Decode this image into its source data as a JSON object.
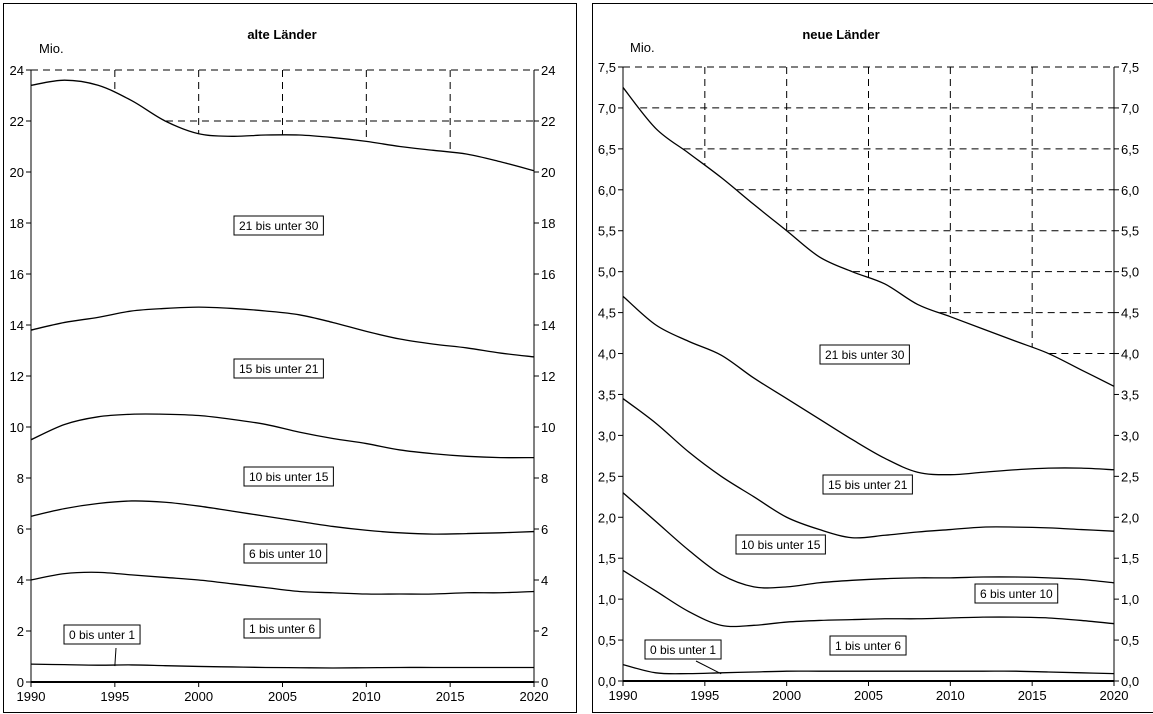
{
  "chart_data": [
    {
      "type": "area",
      "title": "alte Länder",
      "ylabel": "Mio.",
      "xlim": [
        1990,
        2020
      ],
      "ylim": [
        0,
        24
      ],
      "x_ticks": [
        "1990",
        "1995",
        "2000",
        "2005",
        "2010",
        "2015",
        "2020"
      ],
      "y_ticks": [
        "0",
        "2",
        "4",
        "6",
        "8",
        "10",
        "12",
        "14",
        "16",
        "18",
        "20",
        "22",
        "24"
      ],
      "y_ticks_right": [
        "0",
        "2",
        "4",
        "6",
        "8",
        "10",
        "12",
        "14",
        "16",
        "18",
        "20",
        "22",
        "24"
      ],
      "grid": "dashed grid above top curve",
      "x": [
        1990,
        1992,
        1994,
        1996,
        1998,
        2000,
        2002,
        2004,
        2006,
        2008,
        2010,
        2012,
        2014,
        2016,
        2018,
        2020
      ],
      "series": [
        {
          "name": "0 bis unter 1",
          "values": [
            0.7,
            0.68,
            0.66,
            0.67,
            0.64,
            0.61,
            0.59,
            0.57,
            0.56,
            0.55,
            0.56,
            0.57,
            0.57,
            0.57,
            0.57,
            0.57
          ]
        },
        {
          "name": "1 bis unter 6",
          "values": [
            4.0,
            4.25,
            4.3,
            4.2,
            4.1,
            4.0,
            3.85,
            3.7,
            3.55,
            3.5,
            3.45,
            3.45,
            3.45,
            3.5,
            3.5,
            3.55
          ]
        },
        {
          "name": "6 bis unter 10",
          "values": [
            6.5,
            6.8,
            7.0,
            7.1,
            7.05,
            6.9,
            6.7,
            6.5,
            6.3,
            6.1,
            5.95,
            5.85,
            5.8,
            5.82,
            5.85,
            5.9
          ]
        },
        {
          "name": "10 bis unter 15",
          "values": [
            9.5,
            10.1,
            10.4,
            10.5,
            10.5,
            10.45,
            10.3,
            10.1,
            9.8,
            9.55,
            9.35,
            9.1,
            8.95,
            8.85,
            8.8,
            8.8
          ]
        },
        {
          "name": "15 bis unter 21",
          "values": [
            13.8,
            14.1,
            14.3,
            14.55,
            14.65,
            14.7,
            14.65,
            14.55,
            14.4,
            14.1,
            13.75,
            13.45,
            13.25,
            13.1,
            12.9,
            12.75
          ]
        },
        {
          "name": "21 bis unter 30",
          "values": [
            23.4,
            23.6,
            23.4,
            22.8,
            22.0,
            21.5,
            21.4,
            21.45,
            21.45,
            21.35,
            21.2,
            21.0,
            20.85,
            20.7,
            20.4,
            20.05
          ]
        }
      ],
      "labels": [
        "0 bis unter 1",
        "1 bis unter 6",
        "6 bis unter 10",
        "10 bis unter 15",
        "15 bis unter 21",
        "21 bis unter 30"
      ]
    },
    {
      "type": "area",
      "title": "neue Länder",
      "ylabel": "Mio.",
      "xlim": [
        1990,
        2020
      ],
      "ylim": [
        0,
        7.5
      ],
      "x_ticks": [
        "1990",
        "1995",
        "2000",
        "2005",
        "2010",
        "2015",
        "2020"
      ],
      "y_ticks": [
        "0,0",
        "0,5",
        "1,0",
        "1,5",
        "2,0",
        "2,5",
        "3,0",
        "3,5",
        "4,0",
        "4,5",
        "5,0",
        "5,5",
        "6,0",
        "6,5",
        "7,0",
        "7,5"
      ],
      "y_ticks_right": [
        "0,0",
        "0,5",
        "1,0",
        "1,5",
        "2,0",
        "2,5",
        "3,0",
        "3,5",
        "4,0",
        "4,5",
        "5,0",
        "5,5",
        "6,0",
        "6,5",
        "7,0",
        "7,5"
      ],
      "grid": "dashed grid above top curve",
      "x": [
        1990,
        1992,
        1994,
        1996,
        1998,
        2000,
        2002,
        2004,
        2006,
        2008,
        2010,
        2012,
        2014,
        2016,
        2018,
        2020
      ],
      "series": [
        {
          "name": "0 bis unter 1",
          "values": [
            0.2,
            0.1,
            0.09,
            0.1,
            0.11,
            0.12,
            0.12,
            0.12,
            0.12,
            0.12,
            0.12,
            0.12,
            0.12,
            0.11,
            0.1,
            0.09
          ]
        },
        {
          "name": "1 bis unter 6",
          "values": [
            1.35,
            1.1,
            0.85,
            0.68,
            0.68,
            0.72,
            0.74,
            0.75,
            0.76,
            0.76,
            0.77,
            0.78,
            0.78,
            0.77,
            0.74,
            0.7
          ]
        },
        {
          "name": "6 bis unter 10",
          "values": [
            2.3,
            1.95,
            1.6,
            1.3,
            1.15,
            1.15,
            1.2,
            1.23,
            1.25,
            1.26,
            1.26,
            1.27,
            1.27,
            1.26,
            1.24,
            1.2
          ]
        },
        {
          "name": "10 bis unter 15",
          "values": [
            3.45,
            3.15,
            2.8,
            2.5,
            2.25,
            2.0,
            1.85,
            1.75,
            1.78,
            1.82,
            1.85,
            1.88,
            1.88,
            1.87,
            1.85,
            1.83
          ]
        },
        {
          "name": "15 bis unter 21",
          "values": [
            4.7,
            4.35,
            4.15,
            3.98,
            3.7,
            3.45,
            3.2,
            2.95,
            2.72,
            2.55,
            2.52,
            2.55,
            2.58,
            2.6,
            2.6,
            2.58
          ]
        },
        {
          "name": "21 bis unter 30",
          "values": [
            7.25,
            6.75,
            6.45,
            6.15,
            5.82,
            5.5,
            5.18,
            5.0,
            4.85,
            4.6,
            4.45,
            4.3,
            4.15,
            4.0,
            3.8,
            3.6
          ]
        }
      ],
      "labels": [
        "0 bis unter 1",
        "1 bis unter 6",
        "6 bis unter 10",
        "10 bis unter 15",
        "15 bis unter 21",
        "21 bis unter 30"
      ]
    }
  ]
}
